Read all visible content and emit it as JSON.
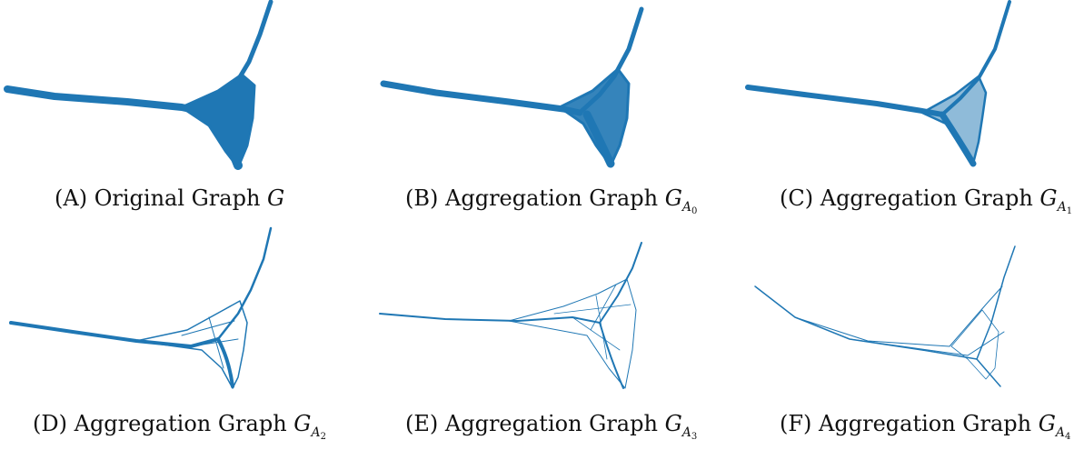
{
  "figure": {
    "edge_color": "#1f77b4",
    "panels": [
      {
        "letter": "(A)",
        "text": "Original Graph ",
        "symbol": "G",
        "subscript_base": "",
        "subscript_index": ""
      },
      {
        "letter": "(B)",
        "text": "Aggregation Graph ",
        "symbol": "G",
        "subscript_base": "A",
        "subscript_index": "0"
      },
      {
        "letter": "(C)",
        "text": "Aggregation Graph ",
        "symbol": "G",
        "subscript_base": "A",
        "subscript_index": "1"
      },
      {
        "letter": "(D)",
        "text": "Aggregation Graph ",
        "symbol": "G",
        "subscript_base": "A",
        "subscript_index": "2"
      },
      {
        "letter": "(E)",
        "text": "Aggregation Graph ",
        "symbol": "G",
        "subscript_base": "A",
        "subscript_index": "3"
      },
      {
        "letter": "(F)",
        "text": "Aggregation Graph ",
        "symbol": "G",
        "subscript_base": "A",
        "subscript_index": "4"
      }
    ]
  }
}
